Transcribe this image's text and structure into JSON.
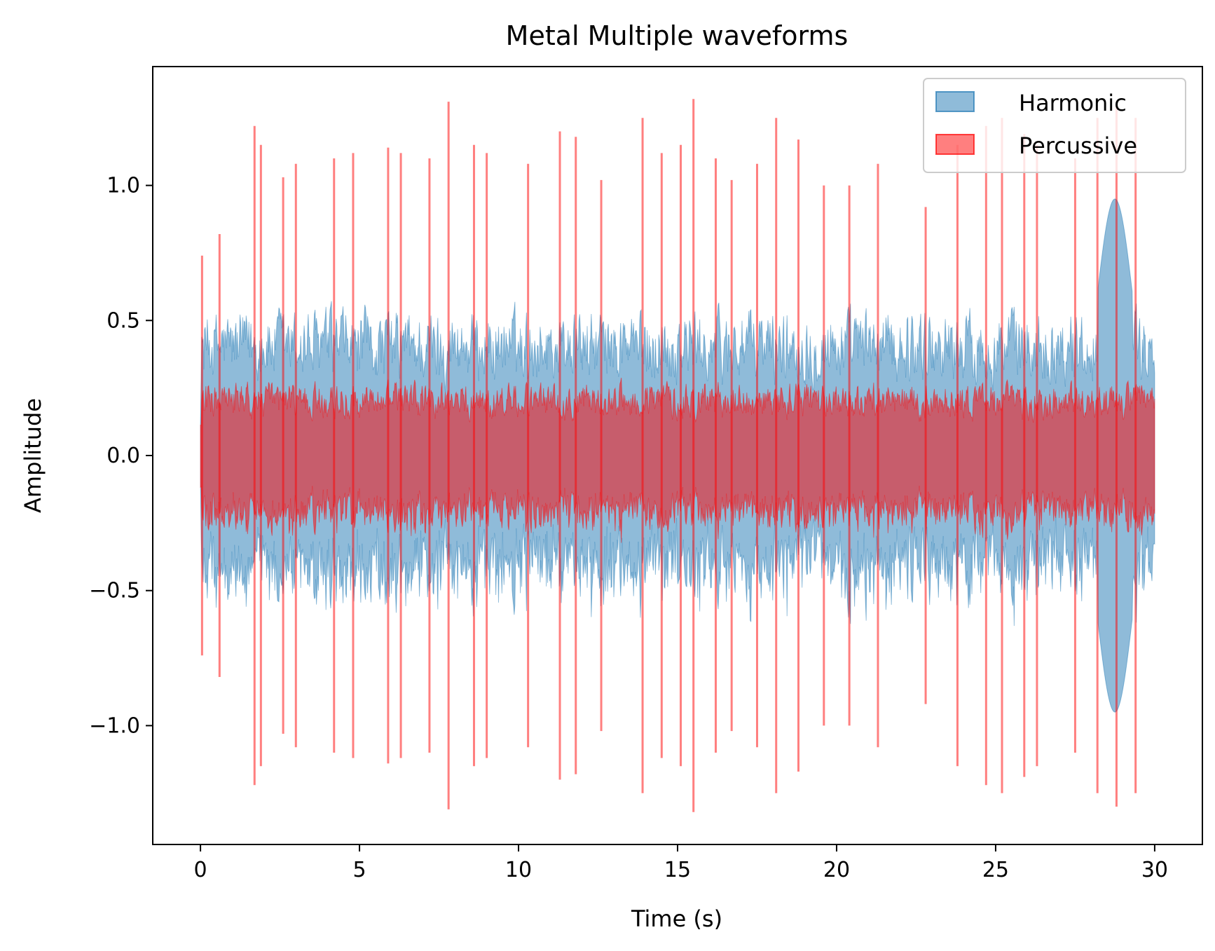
{
  "chart_data": {
    "type": "area",
    "title": "Metal Multiple waveforms",
    "xlabel": "Time (s)",
    "ylabel": "Amplitude",
    "xlim": [
      -1.5,
      31.5
    ],
    "ylim": [
      -1.44,
      1.44
    ],
    "x_ticks": [
      0,
      5,
      10,
      15,
      20,
      25,
      30
    ],
    "x_tick_labels": [
      "0",
      "5",
      "10",
      "15",
      "20",
      "25",
      "30"
    ],
    "y_ticks": [
      -1.0,
      -0.5,
      0.0,
      0.5,
      1.0
    ],
    "y_tick_labels": [
      "−1.0",
      "−0.5",
      "0.0",
      "0.5",
      "1.0"
    ],
    "grid": false,
    "legend_position": "top-right",
    "duration_s": 30,
    "series": [
      {
        "name": "Harmonic",
        "color": "#1f77b4",
        "alpha": 0.5,
        "envelope_peak": 0.95,
        "typical_max_amplitude": 0.6
      },
      {
        "name": "Percussive",
        "color": "#ff0000",
        "alpha": 0.5,
        "envelope_peak": 1.31,
        "typical_max_amplitude": 0.3,
        "spike_times_s": [
          0.05,
          0.6,
          1.7,
          1.9,
          2.6,
          3.0,
          4.2,
          4.8,
          5.9,
          6.3,
          7.2,
          7.8,
          8.6,
          9.0,
          10.3,
          11.3,
          11.8,
          12.6,
          13.9,
          14.5,
          15.1,
          15.5,
          16.2,
          16.7,
          17.5,
          18.1,
          18.8,
          19.6,
          20.4,
          21.3,
          22.8,
          23.8,
          24.7,
          25.2,
          25.9,
          26.3,
          27.5,
          28.2,
          28.8,
          29.4
        ],
        "spike_peaks": [
          0.74,
          0.82,
          1.22,
          1.15,
          1.03,
          1.08,
          1.1,
          1.12,
          1.14,
          1.12,
          1.1,
          1.31,
          1.15,
          1.12,
          1.08,
          1.2,
          1.18,
          1.02,
          1.25,
          1.12,
          1.15,
          1.32,
          1.1,
          1.02,
          1.08,
          1.25,
          1.17,
          1.0,
          1.0,
          1.08,
          0.92,
          1.15,
          1.22,
          1.25,
          1.19,
          1.15,
          1.1,
          1.25,
          1.3,
          1.25
        ]
      }
    ]
  }
}
